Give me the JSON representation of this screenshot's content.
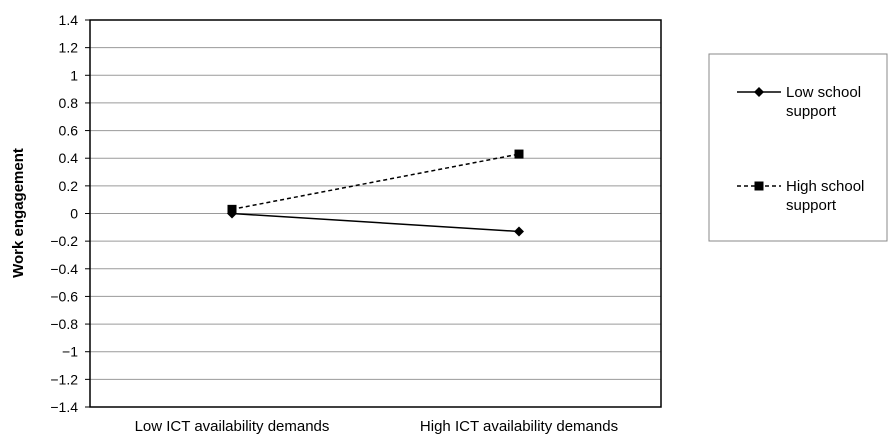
{
  "chart_data": {
    "type": "line",
    "title": "",
    "xlabel": "",
    "ylabel": "Work engagement",
    "categories": [
      "Low ICT availability demands",
      "High ICT availability demands"
    ],
    "ylim": [
      -1.4,
      1.4
    ],
    "yticks": [
      "1.4",
      "1.2",
      "1",
      "0.8",
      "0.6",
      "0.4",
      "0.2",
      "0",
      "−0.2",
      "−0.4",
      "−0.6",
      "−0.8",
      "−1",
      "−1.2",
      "−1.4"
    ],
    "ytick_values": [
      1.4,
      1.2,
      1,
      0.8,
      0.6,
      0.4,
      0.2,
      0,
      -0.2,
      -0.4,
      -0.6,
      -0.8,
      -1,
      -1.2,
      -1.4
    ],
    "grid": true,
    "legend_position": "right",
    "series": [
      {
        "name": "Low school support",
        "name_lines": [
          "Low school",
          "support"
        ],
        "values": [
          0.0,
          -0.13
        ],
        "line_style": "solid",
        "marker": "diamond",
        "color": "#000000"
      },
      {
        "name": "High school support",
        "name_lines": [
          "High school",
          "support"
        ],
        "values": [
          0.03,
          0.43
        ],
        "line_style": "dashed",
        "marker": "square",
        "color": "#000000"
      }
    ]
  }
}
